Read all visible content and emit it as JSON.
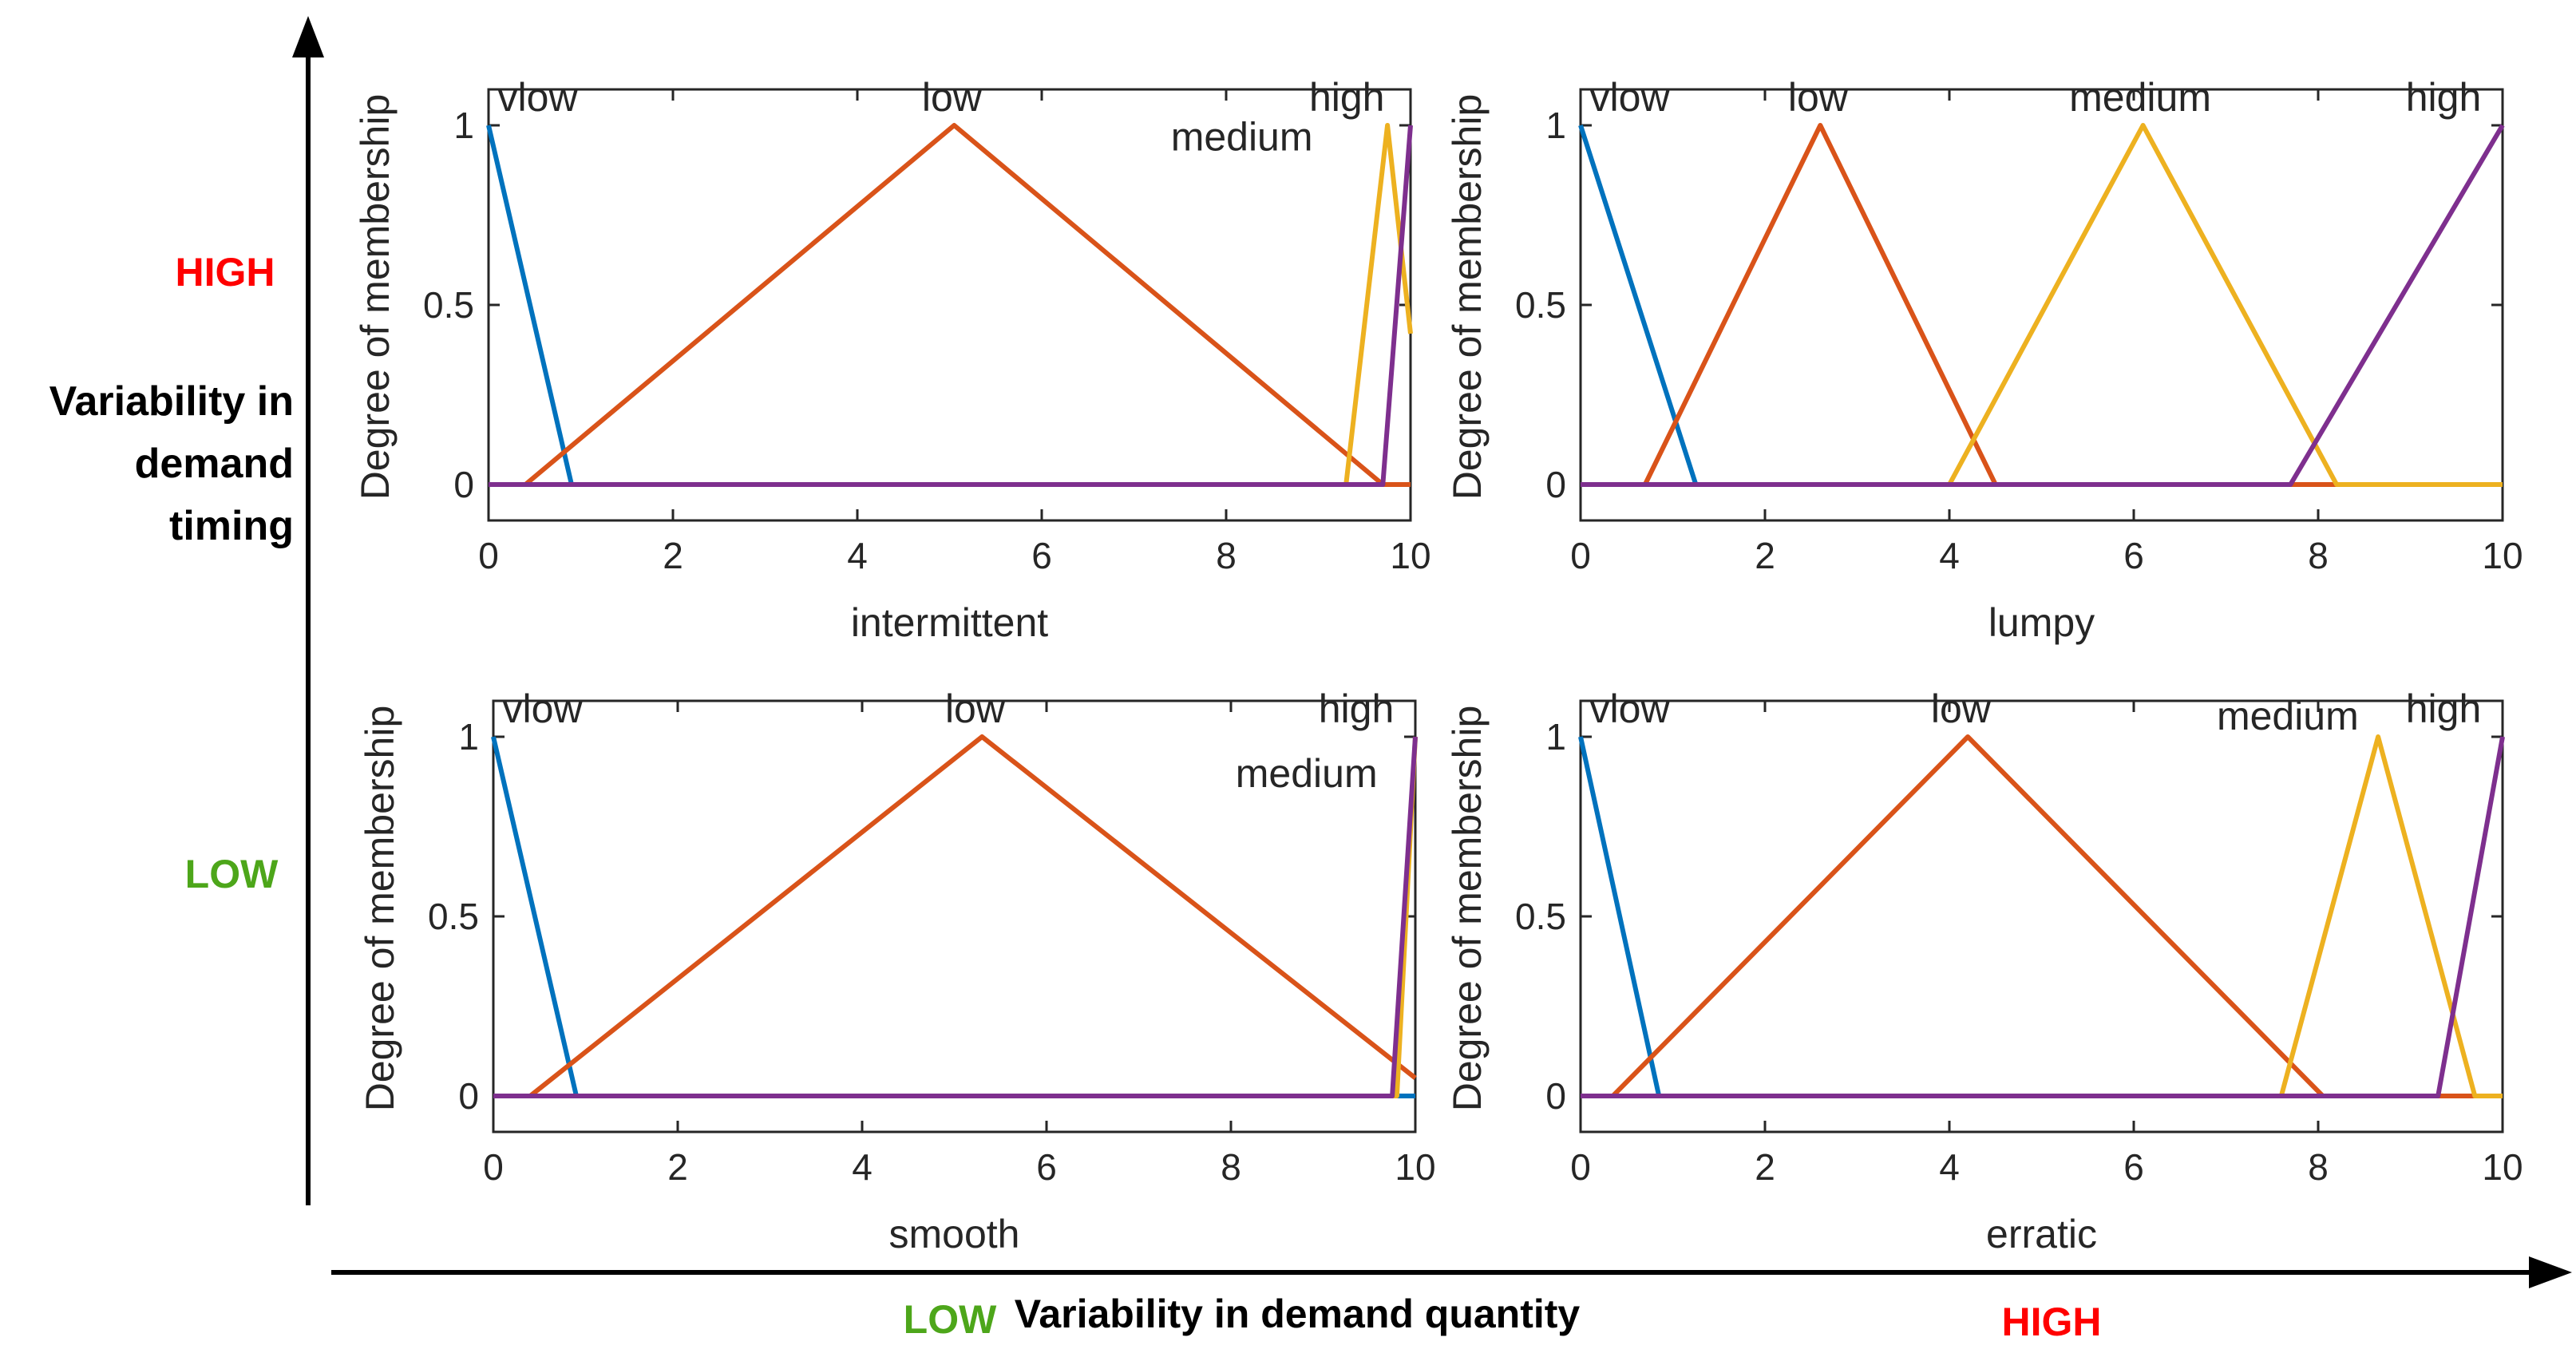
{
  "figure": {
    "y_arrow_label": [
      "Variability in",
      "demand",
      "timing"
    ],
    "x_arrow_label": "Variability in demand quantity",
    "y_high": "HIGH",
    "y_low": "LOW",
    "x_low": "LOW",
    "x_high": "HIGH",
    "colors": {
      "vlow": "#0072BD",
      "low": "#D95319",
      "medium": "#EDB120",
      "high": "#7E2F8E",
      "red": "#FF0000",
      "green": "#4DA61A"
    }
  },
  "chart_data": [
    {
      "type": "line",
      "title": "",
      "xlabel": "intermittent",
      "ylabel": "Degree of membership",
      "xlim": [
        0,
        10
      ],
      "ylim": [
        -0.1,
        1.1
      ],
      "xticks": [
        0,
        2,
        4,
        6,
        8,
        10
      ],
      "yticks": [
        0,
        0.5,
        1
      ],
      "series": [
        {
          "name": "vlow",
          "x": [
            0,
            0.9,
            10
          ],
          "y": [
            1,
            0,
            0
          ]
        },
        {
          "name": "low",
          "x": [
            0,
            0.4,
            5.05,
            9.7,
            10
          ],
          "y": [
            0,
            0,
            1,
            0,
            0
          ]
        },
        {
          "name": "medium",
          "x": [
            0,
            9.3,
            9.75,
            10
          ],
          "y": [
            0,
            0,
            1,
            0.42
          ]
        },
        {
          "name": "high",
          "x": [
            0,
            9.7,
            10
          ],
          "y": [
            0,
            0,
            1
          ]
        }
      ],
      "annotations": [
        {
          "text": "vlow",
          "x": 0.1,
          "y": 1.04
        },
        {
          "text": "low",
          "x": 4.7,
          "y": 1.04
        },
        {
          "text": "high",
          "x": 8.9,
          "y": 1.04
        },
        {
          "text": "medium",
          "x": 7.4,
          "y": 0.93
        }
      ]
    },
    {
      "type": "line",
      "title": "",
      "xlabel": "lumpy",
      "ylabel": "Degree of membership",
      "xlim": [
        0,
        10
      ],
      "ylim": [
        -0.1,
        1.1
      ],
      "xticks": [
        0,
        2,
        4,
        6,
        8,
        10
      ],
      "yticks": [
        0,
        0.5,
        1
      ],
      "series": [
        {
          "name": "vlow",
          "x": [
            0,
            1.25,
            10
          ],
          "y": [
            1,
            0,
            0
          ]
        },
        {
          "name": "low",
          "x": [
            0,
            0.7,
            2.6,
            4.5,
            10
          ],
          "y": [
            0,
            0,
            1,
            0,
            0
          ]
        },
        {
          "name": "medium",
          "x": [
            0,
            4.0,
            6.1,
            8.2,
            10
          ],
          "y": [
            0,
            0,
            1,
            0,
            0
          ]
        },
        {
          "name": "high",
          "x": [
            0,
            7.7,
            10
          ],
          "y": [
            0,
            0,
            1
          ]
        }
      ],
      "annotations": [
        {
          "text": "vlow",
          "x": 0.1,
          "y": 1.04
        },
        {
          "text": "low",
          "x": 2.25,
          "y": 1.04
        },
        {
          "text": "medium",
          "x": 5.3,
          "y": 1.04
        },
        {
          "text": "high",
          "x": 8.95,
          "y": 1.04
        }
      ]
    },
    {
      "type": "line",
      "title": "",
      "xlabel": "smooth",
      "ylabel": "Degree of membership",
      "xlim": [
        0,
        10
      ],
      "ylim": [
        -0.1,
        1.1
      ],
      "xticks": [
        0,
        2,
        4,
        6,
        8,
        10
      ],
      "yticks": [
        0,
        0.5,
        1
      ],
      "series": [
        {
          "name": "vlow",
          "x": [
            0,
            0.9,
            10
          ],
          "y": [
            1,
            0,
            0
          ]
        },
        {
          "name": "low",
          "x": [
            0,
            0.4,
            5.3,
            10
          ],
          "y": [
            0,
            0,
            1,
            0.05
          ]
        },
        {
          "name": "medium",
          "x": [
            0,
            9.8,
            10
          ],
          "y": [
            0,
            0,
            1
          ]
        },
        {
          "name": "high",
          "x": [
            0,
            9.75,
            10
          ],
          "y": [
            0,
            0,
            1
          ]
        }
      ],
      "annotations": [
        {
          "text": "vlow",
          "x": 0.1,
          "y": 1.04
        },
        {
          "text": "low",
          "x": 4.9,
          "y": 1.04
        },
        {
          "text": "high",
          "x": 8.95,
          "y": 1.04
        },
        {
          "text": "medium",
          "x": 8.05,
          "y": 0.86
        }
      ]
    },
    {
      "type": "line",
      "title": "",
      "xlabel": "erratic",
      "ylabel": "Degree of membership",
      "xlim": [
        0,
        10
      ],
      "ylim": [
        -0.1,
        1.1
      ],
      "xticks": [
        0,
        2,
        4,
        6,
        8,
        10
      ],
      "yticks": [
        0,
        0.5,
        1
      ],
      "series": [
        {
          "name": "vlow",
          "x": [
            0,
            0.85,
            10
          ],
          "y": [
            1,
            0,
            0
          ]
        },
        {
          "name": "low",
          "x": [
            0,
            0.35,
            4.2,
            8.05,
            10
          ],
          "y": [
            0,
            0,
            1,
            0,
            0
          ]
        },
        {
          "name": "medium",
          "x": [
            0,
            7.6,
            8.65,
            9.7,
            10
          ],
          "y": [
            0,
            0,
            1,
            0,
            0
          ]
        },
        {
          "name": "high",
          "x": [
            0,
            9.3,
            10
          ],
          "y": [
            0,
            0,
            1
          ]
        }
      ],
      "annotations": [
        {
          "text": "vlow",
          "x": 0.1,
          "y": 1.04
        },
        {
          "text": "low",
          "x": 3.8,
          "y": 1.04
        },
        {
          "text": "medium",
          "x": 6.9,
          "y": 1.02
        },
        {
          "text": "high",
          "x": 8.95,
          "y": 1.04
        }
      ]
    }
  ]
}
